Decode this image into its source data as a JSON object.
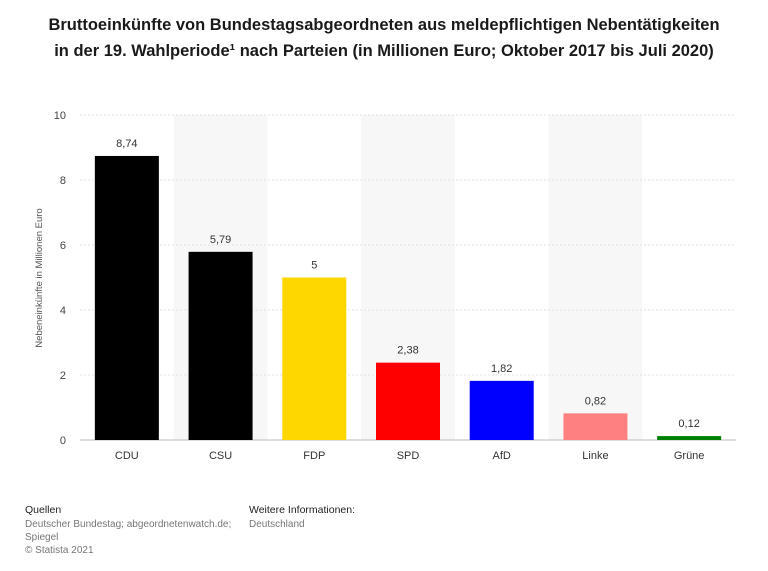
{
  "title": "Bruttoeinkünfte von Bundestagsabgeordneten aus meldepflichtigen Nebentätigkeiten in der 19. Wahlperiode¹ nach Parteien (in Millionen Euro; Oktober 2017 bis Juli 2020)",
  "chart_data": {
    "type": "bar",
    "title": "Bruttoeinkünfte von Bundestagsabgeordneten aus meldepflichtigen Nebentätigkeiten in der 19. Wahlperiode¹ nach Parteien (in Millionen Euro; Oktober 2017 bis Juli 2020)",
    "categories": [
      "CDU",
      "CSU",
      "FDP",
      "SPD",
      "AfD",
      "Linke",
      "Grüne"
    ],
    "values": [
      8.74,
      5.79,
      5,
      2.38,
      1.82,
      0.82,
      0.12
    ],
    "value_labels": [
      "8,74",
      "5,79",
      "5",
      "2,38",
      "1,82",
      "0,82",
      "0,12"
    ],
    "colors": [
      "#000000",
      "#000000",
      "#ffd700",
      "#ff0000",
      "#0000ff",
      "#ff8080",
      "#008000"
    ],
    "xlabel": "",
    "ylabel": "Nebeneinkünfte in Millionen Euro",
    "ylim": [
      0,
      10
    ],
    "yticks": [
      0,
      2,
      4,
      6,
      8,
      10
    ],
    "grid": true
  },
  "footer": {
    "sources_heading": "Quellen",
    "sources_line1": "Deutscher Bundestag; abgeordnetenwatch.de;",
    "sources_line2": "Spiegel",
    "copyright": "© Statista 2021",
    "info_heading": "Weitere Informationen:",
    "info_text": "Deutschland"
  }
}
